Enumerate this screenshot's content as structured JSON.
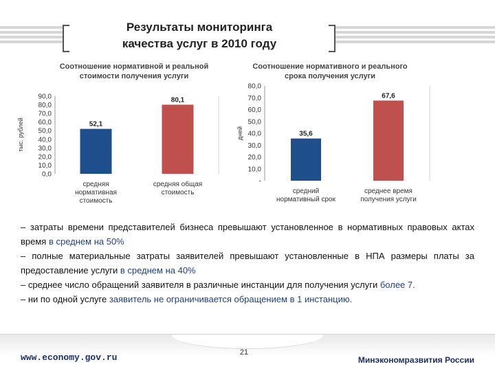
{
  "slide": {
    "title_line1": "Результаты мониторинга",
    "title_line2": "качества услуг в 2010 году"
  },
  "chart_data": [
    {
      "type": "bar",
      "title_lines": [
        "Соотношение нормативной и реальной",
        "стоимости получения услуги"
      ],
      "ylabel": "тыс. рублей",
      "ylim": [
        0,
        90
      ],
      "yticks": [
        "90,0",
        "80,0",
        "70,0",
        "60,0",
        "50,0",
        "40,0",
        "30,0",
        "20,0",
        "10,0",
        "0,0"
      ],
      "categories": [
        [
          "средняя",
          "нормативная",
          "стоимость"
        ],
        [
          "средняя общая",
          "стоимость"
        ]
      ],
      "values": [
        52.1,
        80.1
      ],
      "value_labels": [
        "52,1",
        "80,1"
      ],
      "colors": [
        "#1f4e8c",
        "#c0504d"
      ]
    },
    {
      "type": "bar",
      "title_lines": [
        "Соотношение нормативного и реального",
        "срока получения услуги"
      ],
      "ylabel": "дней",
      "ylim": [
        0,
        80
      ],
      "yticks": [
        "80,0",
        "70,0",
        "60,0",
        "50,0",
        "40,0",
        "30,0",
        "20,0",
        "10,0",
        "-"
      ],
      "categories": [
        [
          "средний",
          "нормативный срок"
        ],
        [
          "среднее время",
          "получения услуги"
        ]
      ],
      "values": [
        35.6,
        67.6
      ],
      "value_labels": [
        "35,6",
        "67,6"
      ],
      "colors": [
        "#1f4e8c",
        "#c0504d"
      ]
    }
  ],
  "bullets": [
    [
      {
        "t": "– затраты времени представителей бизнеса превышают установленное в нормативных правовых актах время ",
        "hl": false
      },
      {
        "t": "в среднем на 50%",
        "hl": true
      }
    ],
    [
      {
        "t": "– полные материальные затраты заявителей превышают установленные в НПА размеры платы за предоставление услуги ",
        "hl": false
      },
      {
        "t": "в среднем на 40%",
        "hl": true
      }
    ],
    [
      {
        "t": "– среднее число обращений заявителя в различные инстанции для получения услуги ",
        "hl": false
      },
      {
        "t": "более 7.",
        "hl": true
      }
    ],
    [
      {
        "t": "– ни по одной услуге ",
        "hl": false
      },
      {
        "t": "заявитель не ограничивается обращением в 1 инстанцию.",
        "hl": true
      }
    ]
  ],
  "footer": {
    "url": "www.economy.gov.ru",
    "page": "21",
    "org": "Минэкономразвития России"
  }
}
